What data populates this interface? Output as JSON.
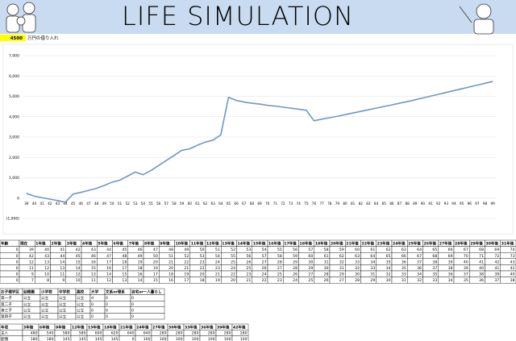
{
  "header": {
    "title": "LIFE SIMULATION"
  },
  "loan": {
    "amount": 4500,
    "label": "万円の借り入れ"
  },
  "chart_data": {
    "type": "line",
    "color": "#6f96c8",
    "grid": true,
    "categories": [
      39,
      40,
      41,
      42,
      43,
      44,
      45,
      46,
      47,
      48,
      49,
      50,
      51,
      52,
      53,
      54,
      55,
      56,
      57,
      58,
      59,
      60,
      61,
      62,
      63,
      64,
      65,
      66,
      67,
      68,
      69,
      70,
      71,
      72,
      73,
      74,
      75,
      76,
      77,
      78,
      79,
      80,
      81,
      82,
      83,
      84,
      85,
      86,
      87,
      88,
      89,
      90,
      91,
      92,
      93,
      94,
      95,
      96,
      97,
      98,
      99
    ],
    "values": [
      230,
      100,
      20,
      -50,
      -120,
      -200,
      200,
      280,
      380,
      480,
      620,
      780,
      880,
      1080,
      1280,
      1150,
      1350,
      1600,
      1850,
      2100,
      2350,
      2420,
      2600,
      2750,
      2850,
      3100,
      4950,
      4800,
      4720,
      4660,
      4620,
      4560,
      4520,
      4470,
      4420,
      4370,
      4320,
      3800,
      3880,
      3950,
      4020,
      4100,
      4180,
      4260,
      4340,
      4420,
      4500,
      4580,
      4660,
      4740,
      4830,
      4920,
      5010,
      5100,
      5190,
      5280,
      5370,
      5460,
      5550,
      5640,
      5730
    ],
    "ylim": [
      -1000,
      7000
    ],
    "yticks": [
      {
        "value": -1000,
        "label": "(1,000)"
      },
      0,
      {
        "value": 1000,
        "label": "1,000"
      },
      {
        "value": 2000,
        "label": "2,000"
      },
      {
        "value": 3000,
        "label": "3,000"
      },
      {
        "value": 4000,
        "label": "4,000"
      },
      {
        "value": 5000,
        "label": "5,000"
      },
      {
        "value": 6000,
        "label": "6,000"
      },
      {
        "value": 7000,
        "label": "7,000"
      }
    ]
  },
  "age_table": {
    "header": [
      "年齢",
      "現在",
      "1年後",
      "2年後",
      "3年後",
      "4年後",
      "5年後",
      "6年後",
      "7年後",
      "8年後",
      "9年後",
      "10年後",
      "11年後",
      "12年後",
      "13年後",
      "14年後",
      "15年後",
      "16年後",
      "17年後",
      "18年後",
      "19年後",
      "20年後",
      "21年後",
      "22年後",
      "23年後",
      "24年後",
      "25年後",
      "26年後",
      "27年後",
      "28年後",
      "29年後",
      "30年後",
      "31年後"
    ],
    "rows": [
      [
        0,
        39,
        40,
        41,
        42,
        43,
        44,
        45,
        46,
        47,
        48,
        49,
        50,
        51,
        52,
        53,
        54,
        55,
        56,
        57,
        58,
        59,
        60,
        61,
        62,
        63,
        64,
        65,
        66,
        67,
        68,
        69,
        70
      ],
      [
        0,
        42,
        43,
        44,
        45,
        46,
        47,
        48,
        49,
        50,
        51,
        52,
        53,
        54,
        55,
        56,
        57,
        58,
        59,
        60,
        61,
        62,
        63,
        64,
        65,
        66,
        67,
        68,
        69,
        70,
        71,
        72,
        73
      ],
      [
        0,
        12,
        13,
        14,
        15,
        16,
        17,
        18,
        19,
        20,
        21,
        22,
        23,
        24,
        25,
        26,
        27,
        28,
        29,
        30,
        31,
        32,
        33,
        34,
        35,
        36,
        37,
        38,
        39,
        40,
        41,
        42,
        43
      ],
      [
        0,
        11,
        12,
        13,
        14,
        15,
        16,
        17,
        18,
        19,
        20,
        21,
        22,
        23,
        24,
        25,
        26,
        27,
        28,
        29,
        30,
        31,
        32,
        33,
        34,
        35,
        36,
        37,
        38,
        39,
        40,
        41,
        42
      ],
      [
        0,
        9,
        10,
        11,
        12,
        13,
        14,
        15,
        16,
        17,
        18,
        19,
        20,
        21,
        22,
        23,
        24,
        25,
        26,
        27,
        28,
        29,
        30,
        31,
        32,
        33,
        34,
        35,
        36,
        37,
        38,
        39,
        40
      ],
      [
        0,
        7,
        8,
        9,
        10,
        11,
        12,
        13,
        14,
        15,
        16,
        17,
        18,
        19,
        20,
        21,
        22,
        23,
        24,
        25,
        26,
        27,
        28,
        29,
        30,
        31,
        32,
        33,
        34,
        35,
        36,
        37,
        38
      ]
    ]
  },
  "school_table": {
    "header": [
      "お子様学区",
      "幼稚園",
      "小学校",
      "中学校",
      "高校",
      "大学",
      "文系or理系",
      "自宅or一人暮らし"
    ],
    "rows": [
      [
        "第一子",
        "公立",
        "公立",
        "公立",
        "公立",
        "d",
        0,
        0
      ],
      [
        "第二子",
        "公立",
        "公立",
        "公立",
        "公立",
        0,
        0,
        0
      ],
      [
        "第三子",
        "公立",
        "公立",
        "公立",
        "公立",
        0,
        0,
        0
      ],
      [
        "第四子",
        "公立",
        "公立",
        "公立",
        "公立",
        0,
        0,
        0
      ]
    ]
  },
  "income_table": {
    "header": [
      "年収",
      "3年後",
      "6年後",
      "9年後",
      "12年後",
      "15年後",
      "18年後",
      "21年後",
      "24年後",
      "27年後",
      "30年後",
      "33年後",
      "36年後",
      "39年後",
      "42年後"
    ],
    "rows": [
      [
        "主人",
        480,
        540,
        580,
        580,
        600,
        620,
        640,
        640,
        280,
        280,
        280,
        280,
        280,
        280
      ],
      [
        "配偶",
        180,
        180,
        145,
        145,
        145,
        145,
        0,
        100,
        100,
        100,
        100,
        100,
        100,
        100
      ]
    ]
  }
}
